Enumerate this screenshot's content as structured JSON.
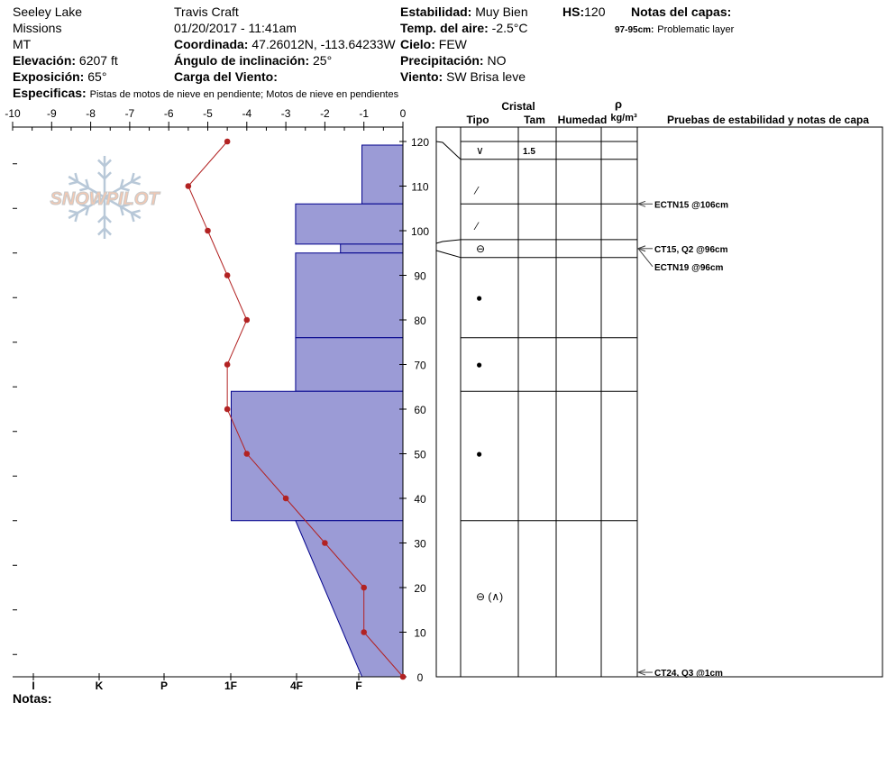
{
  "header": {
    "location": "Seeley Lake",
    "range": "Missions",
    "state": "MT",
    "observer": "Travis  Craft",
    "datetime": "01/20/2017 - 11:41am",
    "elevation_label": "Elevación:",
    "elevation_value": "6207 ft",
    "aspect_label": "Exposición:",
    "aspect_value": "65°",
    "specifics_label": "Especificas:",
    "specifics_value": "Pistas de motos de nieve en pendiente;  Motos de nieve en pendientes",
    "coord_label": "Coordinada:",
    "coord_value": "47.26012N, -113.64233W",
    "slope_label": "Ángulo de inclinación:",
    "slope_value": "25°",
    "wind_load_label": "Carga del Viento:",
    "wind_load_value": "",
    "stability_label": "Estabilidad:",
    "stability_value": "Muy Bien",
    "air_temp_label": "Temp. del aire:",
    "air_temp_value": "-2.5°C",
    "sky_label": "Cielo:",
    "sky_value": "FEW",
    "precip_label": "Precipitación:",
    "precip_value": "NO",
    "wind_label": "Viento:",
    "wind_value": "SW  Brisa leve",
    "hs_label": "HS:",
    "hs_value": "120",
    "layer_notes_label": "Notas del capas:",
    "layer_note_range": "97-95cm:",
    "layer_note_text": "Problematic layer",
    "notes_label": "Notas:"
  },
  "logo_text": "SNOWPILOT",
  "chart_data": {
    "type": "line",
    "title": "",
    "temp_axis": {
      "ticks": [
        -10,
        -9,
        -8,
        -7,
        -6,
        -5,
        -4,
        -3,
        -2,
        -1,
        0
      ],
      "range": [
        -10,
        0
      ],
      "position": "top"
    },
    "depth_axis": {
      "range": [
        0,
        120
      ],
      "ticks": [
        0,
        10,
        20,
        30,
        40,
        50,
        60,
        70,
        80,
        90,
        100,
        110,
        120
      ],
      "position": "right"
    },
    "hardness_axis": {
      "labels": [
        "I",
        "K",
        "P",
        "1F",
        "4F",
        "F"
      ],
      "position": "bottom"
    },
    "temperature_profile": {
      "color": "#b22222",
      "points": [
        {
          "depth": 120,
          "temp": -4.5
        },
        {
          "depth": 110,
          "temp": -5.5
        },
        {
          "depth": 100,
          "temp": -5.0
        },
        {
          "depth": 90,
          "temp": -4.5
        },
        {
          "depth": 80,
          "temp": -4.0
        },
        {
          "depth": 70,
          "temp": -4.5
        },
        {
          "depth": 60,
          "temp": -4.5
        },
        {
          "depth": 50,
          "temp": -4.0
        },
        {
          "depth": 40,
          "temp": -3.0
        },
        {
          "depth": 30,
          "temp": -2.0
        },
        {
          "depth": 20,
          "temp": -1.0
        },
        {
          "depth": 10,
          "temp": -1.0
        },
        {
          "depth": 0,
          "temp": 0.0
        }
      ]
    },
    "hardness_profile": {
      "fill": "#9b9bd6",
      "stroke": "#00008b",
      "layers": [
        {
          "top": 119.2,
          "bottom": 106,
          "hardness_temp": -1.05
        },
        {
          "top": 106,
          "bottom": 97,
          "hardness_temp": -2.75
        },
        {
          "top": 97,
          "bottom": 95,
          "hardness_temp": -1.6
        },
        {
          "top": 95,
          "bottom": 76,
          "hardness_temp": -2.75
        },
        {
          "top": 76,
          "bottom": 64,
          "hardness_temp": -2.75
        },
        {
          "top": 64,
          "bottom": 35,
          "hardness_temp": -4.4
        },
        {
          "top": 35,
          "bottom": 0,
          "hardness_temp_top": -2.75,
          "hardness_temp_bottom": -1.05
        }
      ]
    },
    "layer_table": {
      "header_crystal": "Cristal",
      "header_type": "Tipo",
      "header_size": "Tam",
      "header_moisture": "Humedad",
      "header_density_symbol": "ρ",
      "header_density_units": "kg/m³",
      "header_tests": "Pruebas de estabilidad y notas de capa",
      "boundaries": [
        120,
        116,
        106,
        98,
        94,
        76,
        64,
        35,
        0
      ],
      "grain_rows": [
        {
          "depth": 118,
          "type": "∨",
          "size": "1.5"
        },
        {
          "depth": 109,
          "type": "⁄",
          "size": ""
        },
        {
          "depth": 101,
          "type": "⁄",
          "size": ""
        },
        {
          "depth": 96,
          "type": "⊖",
          "size": ""
        },
        {
          "depth": 85,
          "type": "●",
          "size": ""
        },
        {
          "depth": 70,
          "type": "●",
          "size": ""
        },
        {
          "depth": 50,
          "type": "●",
          "size": ""
        },
        {
          "depth": 18,
          "type": "⊖ (∧)",
          "size": ""
        }
      ]
    },
    "stability_tests": [
      {
        "label": "ECTN15 @106cm",
        "depth": 106
      },
      {
        "label": "CT15, Q2 @96cm",
        "depth": 96
      },
      {
        "label": "ECTN19 @96cm",
        "depth": 96
      },
      {
        "label": "CT24, Q3 @1cm",
        "depth": 1
      }
    ]
  }
}
